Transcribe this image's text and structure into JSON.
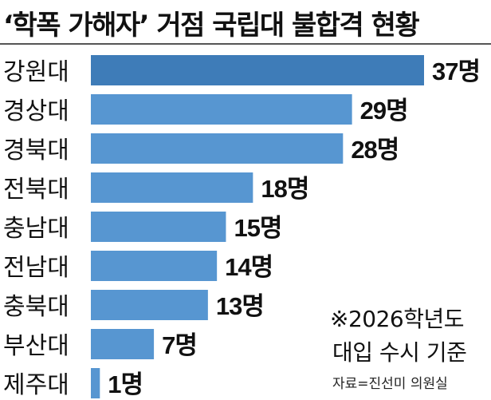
{
  "header": {
    "title": "‘학폭 가해자’ 거점 국립대 불합격 현황"
  },
  "chart_data": {
    "type": "bar",
    "orientation": "horizontal",
    "categories": [
      "강원대",
      "경상대",
      "경북대",
      "전북대",
      "충남대",
      "전남대",
      "충북대",
      "부산대",
      "제주대"
    ],
    "values": [
      37,
      29,
      28,
      18,
      15,
      14,
      13,
      7,
      1
    ],
    "value_labels": [
      "37명",
      "29명",
      "28명",
      "18명",
      "15명",
      "14명",
      "13명",
      "7명",
      "1명"
    ],
    "unit": "명",
    "title": "‘학폭 가해자’ 거점 국립대 불합격 현황",
    "xlim": [
      0,
      37
    ],
    "grid": false,
    "colors": {
      "highlight": "#3e7cb8",
      "bar": "#5796d1"
    }
  },
  "notes": {
    "line1": "※2026학년도",
    "line2": "대입 수시 기준"
  },
  "source": "자료=진선미 의원실"
}
